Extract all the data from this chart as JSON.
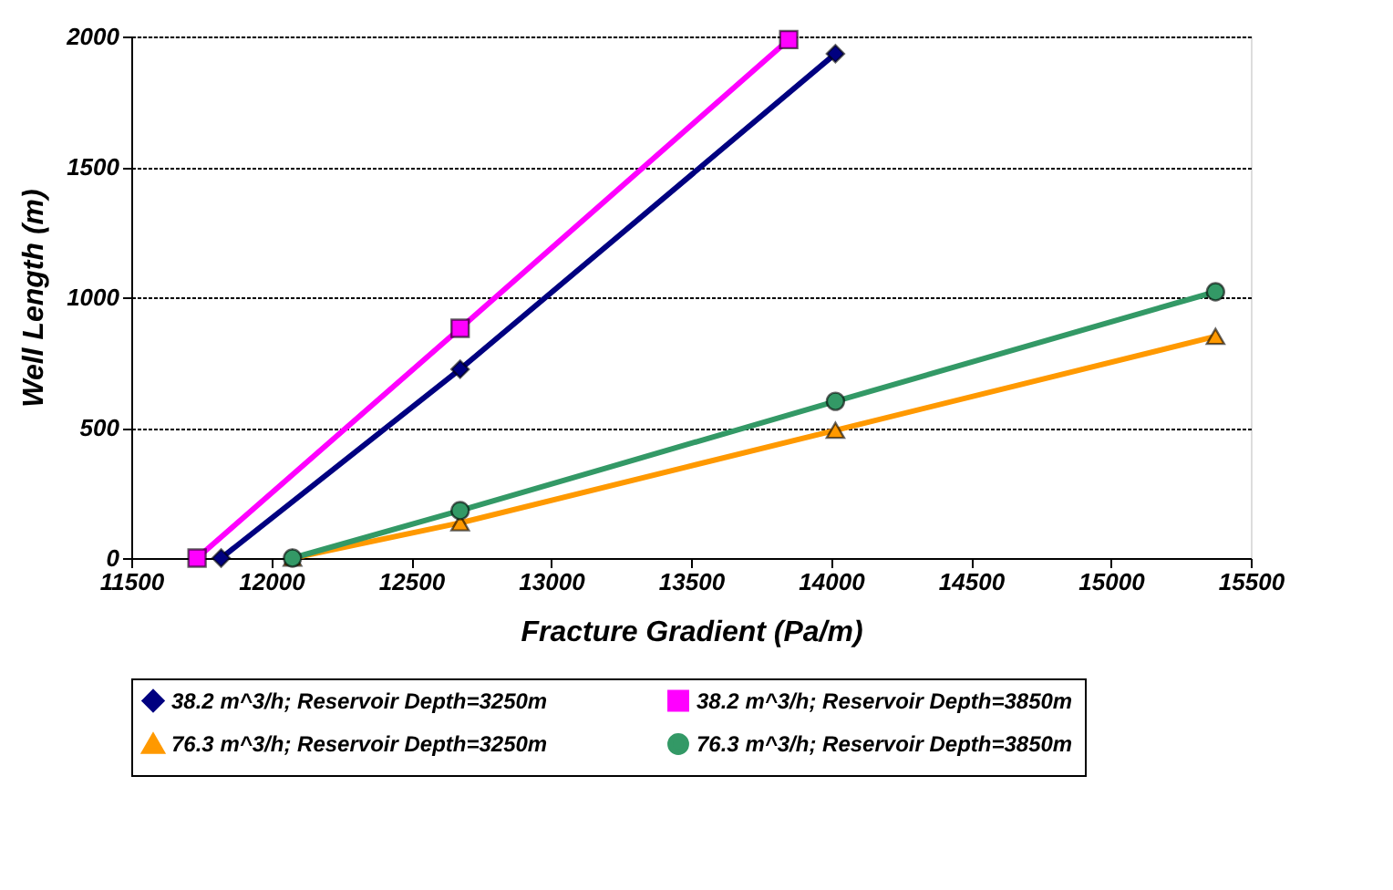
{
  "chart_data": {
    "type": "line",
    "xlabel": "Fracture Gradient (Pa/m)",
    "ylabel": "Well Length (m)",
    "xlim": [
      11500,
      15500
    ],
    "xticks": [
      11500,
      12000,
      12500,
      13000,
      13500,
      14000,
      14500,
      15000,
      15500
    ],
    "ylim": [
      0,
      2000
    ],
    "yticks": [
      0,
      500,
      1000,
      1500,
      2000
    ],
    "grid": "y",
    "legend": "bottom",
    "line_style": "solid",
    "series": [
      {
        "name": "38.2 m^3/h; Reservoir Depth=3250m",
        "color": "#000080",
        "marker": "diamond",
        "x": [
          11821,
          12675,
          14016
        ],
        "values": [
          0,
          724,
          1934
        ]
      },
      {
        "name": "38.2 m^3/h; Reservoir Depth=3850m",
        "color": "#ff00ff",
        "marker": "square",
        "x": [
          11735,
          12675,
          13849
        ],
        "values": [
          0,
          881,
          1988
        ]
      },
      {
        "name": "76.3 m^3/h; Reservoir Depth=3250m",
        "color": "#ff9900",
        "marker": "triangle",
        "x": [
          12076,
          12675,
          14016,
          15374
        ],
        "values": [
          0,
          135,
          490,
          850
        ]
      },
      {
        "name": "76.3 m^3/h; Reservoir Depth=3850m",
        "color": "#339966",
        "marker": "circle",
        "x": [
          12076,
          12675,
          14016,
          15374
        ],
        "values": [
          0,
          182,
          601,
          1021
        ]
      }
    ]
  }
}
